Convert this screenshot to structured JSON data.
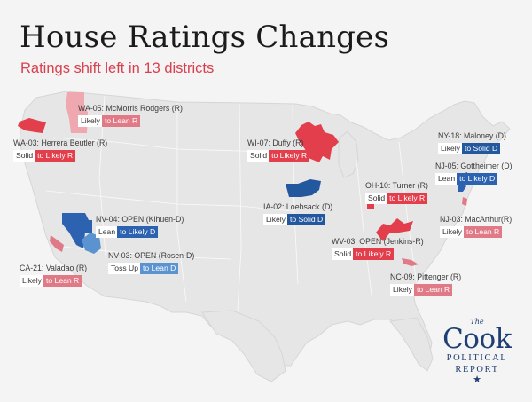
{
  "header": {
    "title": "House Ratings Changes",
    "subtitle": "Ratings shift left in 13 districts"
  },
  "colors": {
    "red": "#e23e4b",
    "pink": "#e27a86",
    "light_pink": "#f0a8b0",
    "blue": "#2c62b0",
    "light_blue": "#5b93d1",
    "dark_blue": "#23579e",
    "map_fill": "#e6e6e6",
    "background": "#f4f4f4"
  },
  "districts": [
    {
      "id": "WA-05",
      "name": "WA-05: McMorris Rodgers (R)",
      "from": "Likely",
      "to": "to Lean R",
      "color": "#e07a86"
    },
    {
      "id": "WA-03",
      "name": "WA-03: Herrera Beutler (R)",
      "from": "Solid",
      "to": "to Likely R",
      "color": "#e23e4b"
    },
    {
      "id": "WI-07",
      "name": "WI-07: Duffy (R)",
      "from": "Solid",
      "to": "to Likely R",
      "color": "#e23e4b"
    },
    {
      "id": "NY-18",
      "name": "NY-18: Maloney (D)",
      "from": "Likely",
      "to": "to Solid D",
      "color": "#23579e"
    },
    {
      "id": "NJ-05",
      "name": "NJ-05: Gottheimer (D)",
      "from": "Lean",
      "to": "to Likely D",
      "color": "#2c62b0"
    },
    {
      "id": "OH-10",
      "name": "OH-10: Turner (R)",
      "from": "Solid",
      "to": "to Likely R",
      "color": "#e23e4b"
    },
    {
      "id": "IA-02",
      "name": "IA-02: Loebsack (D)",
      "from": "Likely",
      "to": "to Solid D",
      "color": "#23579e"
    },
    {
      "id": "NV-04",
      "name": "NV-04: OPEN (Kihuen-D)",
      "from": "Lean",
      "to": "to Likely D",
      "color": "#2c62b0"
    },
    {
      "id": "NV-03",
      "name": "NV-03: OPEN (Rosen-D)",
      "from": "Toss Up",
      "to": "to Lean D",
      "color": "#5b93d1"
    },
    {
      "id": "NJ-03",
      "name": "NJ-03: MacArthur(R)",
      "from": "Likely",
      "to": "to Lean R",
      "color": "#e07a86"
    },
    {
      "id": "WV-03",
      "name": "WV-03: OPEN (Jenkins-R)",
      "from": "Solid",
      "to": "to Likely R",
      "color": "#e23e4b"
    },
    {
      "id": "CA-21",
      "name": "CA-21: Valadao (R)",
      "from": "Likely",
      "to": "to Lean R",
      "color": "#e07a86"
    },
    {
      "id": "NC-09",
      "name": "NC-09: Pittenger (R)",
      "from": "Likely",
      "to": "to Lean R",
      "color": "#e07a86"
    }
  ],
  "logo": {
    "the": "The",
    "cook": "Cook",
    "political": "POLITICAL",
    "report": "REPORT",
    "star": "★"
  }
}
